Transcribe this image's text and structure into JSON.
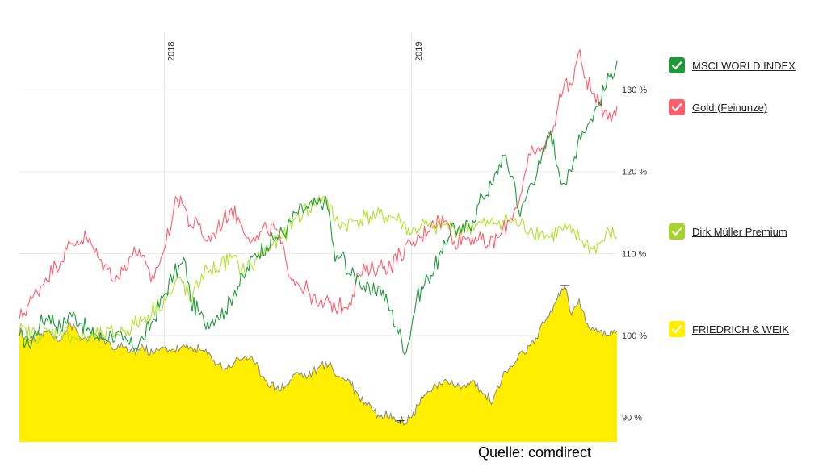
{
  "chart_data": {
    "type": "line",
    "y_unit": "%",
    "y_ticks": [
      90,
      100,
      110,
      120,
      130
    ],
    "ylim": [
      87,
      137
    ],
    "x_range": [
      "2017-06-01",
      "2019-10-31"
    ],
    "x_year_ticks": [
      {
        "label": "2018",
        "date": "2018-01-01"
      },
      {
        "label": "2019",
        "date": "2019-01-01"
      }
    ],
    "grid": true,
    "legend_position": "right",
    "series": [
      {
        "name": "MSCI WORLD INDEX",
        "color": "#1f9a3a",
        "style": "line",
        "points": [
          [
            "2017-06-01",
            100.0
          ],
          [
            "2017-06-15",
            98.8
          ],
          [
            "2017-07-01",
            101.4
          ],
          [
            "2017-07-15",
            102.5
          ],
          [
            "2017-08-01",
            100.8
          ],
          [
            "2017-08-15",
            102.8
          ],
          [
            "2017-09-01",
            101.5
          ],
          [
            "2017-09-15",
            100.2
          ],
          [
            "2017-10-01",
            99.6
          ],
          [
            "2017-10-15",
            100.2
          ],
          [
            "2017-11-01",
            99.4
          ],
          [
            "2017-11-15",
            98.6
          ],
          [
            "2017-12-01",
            99.6
          ],
          [
            "2017-12-15",
            101.8
          ],
          [
            "2018-01-01",
            105.0
          ],
          [
            "2018-01-15",
            107.5
          ],
          [
            "2018-02-01",
            109.0
          ],
          [
            "2018-02-09",
            104.0
          ],
          [
            "2018-02-20",
            103.0
          ],
          [
            "2018-03-01",
            101.5
          ],
          [
            "2018-03-20",
            102.5
          ],
          [
            "2018-04-01",
            103.0
          ],
          [
            "2018-04-15",
            105.5
          ],
          [
            "2018-05-01",
            107.5
          ],
          [
            "2018-05-15",
            110.0
          ],
          [
            "2018-06-01",
            111.0
          ],
          [
            "2018-06-15",
            112.0
          ],
          [
            "2018-07-01",
            113.0
          ],
          [
            "2018-07-15",
            115.0
          ],
          [
            "2018-08-01",
            115.5
          ],
          [
            "2018-08-15",
            116.0
          ],
          [
            "2018-08-25",
            116.5
          ],
          [
            "2018-09-01",
            115.0
          ],
          [
            "2018-09-10",
            109.0
          ],
          [
            "2018-09-20",
            110.0
          ],
          [
            "2018-10-01",
            107.5
          ],
          [
            "2018-10-15",
            107.0
          ],
          [
            "2018-11-01",
            105.0
          ],
          [
            "2018-11-15",
            106.0
          ],
          [
            "2018-12-01",
            103.0
          ],
          [
            "2018-12-10",
            101.0
          ],
          [
            "2018-12-24",
            98.0
          ],
          [
            "2019-01-08",
            104.5
          ],
          [
            "2019-01-25",
            107.0
          ],
          [
            "2019-02-15",
            110.0
          ],
          [
            "2019-03-01",
            113.5
          ],
          [
            "2019-03-15",
            112.5
          ],
          [
            "2019-04-01",
            114.0
          ],
          [
            "2019-04-15",
            117.0
          ],
          [
            "2019-05-01",
            118.5
          ],
          [
            "2019-05-15",
            122.0
          ],
          [
            "2019-06-01",
            119.0
          ],
          [
            "2019-06-10",
            114.5
          ],
          [
            "2019-06-25",
            118.5
          ],
          [
            "2019-07-10",
            121.0
          ],
          [
            "2019-07-25",
            125.0
          ],
          [
            "2019-08-05",
            120.5
          ],
          [
            "2019-08-15",
            118.5
          ],
          [
            "2019-08-25",
            120.0
          ],
          [
            "2019-09-05",
            124.5
          ],
          [
            "2019-09-20",
            126.0
          ],
          [
            "2019-10-05",
            128.5
          ],
          [
            "2019-10-20",
            131.5
          ],
          [
            "2019-10-31",
            133.5
          ]
        ]
      },
      {
        "name": "Gold (Feinunze)",
        "color": "#ff5f6d",
        "style": "line",
        "points": [
          [
            "2017-06-01",
            102.0
          ],
          [
            "2017-06-20",
            104.5
          ],
          [
            "2017-07-10",
            107.0
          ],
          [
            "2017-07-25",
            108.5
          ],
          [
            "2017-08-10",
            110.5
          ],
          [
            "2017-08-25",
            111.5
          ],
          [
            "2017-09-08",
            112.0
          ],
          [
            "2017-09-25",
            109.5
          ],
          [
            "2017-10-10",
            108.0
          ],
          [
            "2017-10-25",
            107.0
          ],
          [
            "2017-11-10",
            109.5
          ],
          [
            "2017-11-25",
            110.5
          ],
          [
            "2017-12-12",
            106.5
          ],
          [
            "2018-01-01",
            110.5
          ],
          [
            "2018-01-15",
            115.5
          ],
          [
            "2018-01-25",
            117.0
          ],
          [
            "2018-02-08",
            113.5
          ],
          [
            "2018-02-20",
            113.5
          ],
          [
            "2018-03-05",
            111.5
          ],
          [
            "2018-03-20",
            113.0
          ],
          [
            "2018-04-10",
            115.5
          ],
          [
            "2018-04-25",
            113.5
          ],
          [
            "2018-05-15",
            111.5
          ],
          [
            "2018-06-01",
            113.0
          ],
          [
            "2018-06-15",
            113.0
          ],
          [
            "2018-07-01",
            108.5
          ],
          [
            "2018-07-15",
            106.5
          ],
          [
            "2018-08-01",
            105.5
          ],
          [
            "2018-08-16",
            103.5
          ],
          [
            "2018-09-01",
            104.0
          ],
          [
            "2018-09-15",
            103.5
          ],
          [
            "2018-10-01",
            104.0
          ],
          [
            "2018-10-15",
            107.5
          ],
          [
            "2018-11-01",
            108.0
          ],
          [
            "2018-11-15",
            108.5
          ],
          [
            "2018-12-01",
            108.5
          ],
          [
            "2018-12-15",
            110.0
          ],
          [
            "2019-01-01",
            111.0
          ],
          [
            "2019-01-15",
            112.0
          ],
          [
            "2019-02-01",
            114.0
          ],
          [
            "2019-02-20",
            114.0
          ],
          [
            "2019-03-05",
            111.5
          ],
          [
            "2019-03-20",
            112.0
          ],
          [
            "2019-04-05",
            112.0
          ],
          [
            "2019-04-23",
            111.0
          ],
          [
            "2019-05-10",
            112.0
          ],
          [
            "2019-05-25",
            114.0
          ],
          [
            "2019-06-10",
            117.0
          ],
          [
            "2019-06-25",
            122.0
          ],
          [
            "2019-07-10",
            122.5
          ],
          [
            "2019-07-25",
            124.5
          ],
          [
            "2019-08-05",
            128.0
          ],
          [
            "2019-08-15",
            131.0
          ],
          [
            "2019-08-25",
            130.5
          ],
          [
            "2019-09-04",
            134.5
          ],
          [
            "2019-09-15",
            131.5
          ],
          [
            "2019-09-25",
            129.5
          ],
          [
            "2019-10-05",
            128.0
          ],
          [
            "2019-10-15",
            127.5
          ],
          [
            "2019-10-25",
            127.0
          ],
          [
            "2019-10-31",
            128.0
          ]
        ]
      },
      {
        "name": "Dirk Müller Premium",
        "color": "#b2e22e",
        "style": "line",
        "points": [
          [
            "2017-06-01",
            100.5
          ],
          [
            "2017-07-01",
            100.0
          ],
          [
            "2017-08-01",
            100.5
          ],
          [
            "2017-09-01",
            99.5
          ],
          [
            "2017-10-01",
            100.0
          ],
          [
            "2017-11-01",
            100.5
          ],
          [
            "2017-12-01",
            102.0
          ],
          [
            "2017-12-20",
            103.5
          ],
          [
            "2018-01-10",
            105.0
          ],
          [
            "2018-01-25",
            107.0
          ],
          [
            "2018-02-10",
            104.0
          ],
          [
            "2018-02-25",
            107.5
          ],
          [
            "2018-03-10",
            108.0
          ],
          [
            "2018-03-25",
            108.5
          ],
          [
            "2018-04-10",
            109.5
          ],
          [
            "2018-04-25",
            108.0
          ],
          [
            "2018-05-10",
            108.5
          ],
          [
            "2018-05-25",
            110.0
          ],
          [
            "2018-06-10",
            111.0
          ],
          [
            "2018-06-25",
            112.0
          ],
          [
            "2018-07-10",
            114.0
          ],
          [
            "2018-07-25",
            115.0
          ],
          [
            "2018-08-10",
            116.0
          ],
          [
            "2018-08-25",
            117.0
          ],
          [
            "2018-09-10",
            114.0
          ],
          [
            "2018-09-25",
            113.5
          ],
          [
            "2018-10-10",
            114.0
          ],
          [
            "2018-10-25",
            114.5
          ],
          [
            "2018-11-10",
            114.5
          ],
          [
            "2018-12-01",
            114.5
          ],
          [
            "2018-12-15",
            114.0
          ],
          [
            "2019-01-01",
            112.5
          ],
          [
            "2019-01-15",
            113.5
          ],
          [
            "2019-02-01",
            113.0
          ],
          [
            "2019-02-20",
            113.5
          ],
          [
            "2019-03-05",
            113.0
          ],
          [
            "2019-03-20",
            113.0
          ],
          [
            "2019-04-05",
            113.5
          ],
          [
            "2019-04-25",
            113.5
          ],
          [
            "2019-05-10",
            114.0
          ],
          [
            "2019-05-25",
            114.0
          ],
          [
            "2019-06-10",
            113.5
          ],
          [
            "2019-06-25",
            113.0
          ],
          [
            "2019-07-10",
            112.5
          ],
          [
            "2019-07-25",
            112.0
          ],
          [
            "2019-08-10",
            113.0
          ],
          [
            "2019-08-25",
            112.5
          ],
          [
            "2019-09-10",
            111.5
          ],
          [
            "2019-09-25",
            110.5
          ],
          [
            "2019-10-10",
            111.5
          ],
          [
            "2019-10-20",
            112.5
          ],
          [
            "2019-10-31",
            112.0
          ]
        ]
      },
      {
        "name": "FRIEDRICH & WEIK",
        "color": "#ffee00",
        "line_color": "#888888",
        "style": "area",
        "points": [
          [
            "2017-06-01",
            100.5
          ],
          [
            "2017-06-15",
            99.5
          ],
          [
            "2017-07-01",
            100.0
          ],
          [
            "2017-07-15",
            100.5
          ],
          [
            "2017-08-01",
            99.5
          ],
          [
            "2017-08-15",
            101.5
          ],
          [
            "2017-09-01",
            99.5
          ],
          [
            "2017-09-15",
            100.0
          ],
          [
            "2017-10-01",
            99.5
          ],
          [
            "2017-10-15",
            98.5
          ],
          [
            "2017-11-01",
            98.5
          ],
          [
            "2017-11-15",
            98.0
          ],
          [
            "2017-12-01",
            98.5
          ],
          [
            "2017-12-15",
            97.8
          ],
          [
            "2018-01-01",
            98.5
          ],
          [
            "2018-01-15",
            98.3
          ],
          [
            "2018-02-01",
            98.5
          ],
          [
            "2018-02-15",
            98.5
          ],
          [
            "2018-03-01",
            98.0
          ],
          [
            "2018-03-15",
            97.0
          ],
          [
            "2018-04-01",
            96.0
          ],
          [
            "2018-04-15",
            96.8
          ],
          [
            "2018-05-01",
            97.5
          ],
          [
            "2018-05-15",
            96.5
          ],
          [
            "2018-06-01",
            94.5
          ],
          [
            "2018-06-15",
            93.5
          ],
          [
            "2018-07-01",
            94.0
          ],
          [
            "2018-07-15",
            95.5
          ],
          [
            "2018-08-01",
            95.0
          ],
          [
            "2018-08-15",
            96.0
          ],
          [
            "2018-09-01",
            96.5
          ],
          [
            "2018-09-15",
            95.0
          ],
          [
            "2018-10-01",
            94.5
          ],
          [
            "2018-10-15",
            92.5
          ],
          [
            "2018-11-01",
            91.5
          ],
          [
            "2018-11-15",
            90.0
          ],
          [
            "2018-12-01",
            90.5
          ],
          [
            "2018-12-15",
            89.5
          ],
          [
            "2019-01-01",
            90.0
          ],
          [
            "2019-01-15",
            92.5
          ],
          [
            "2019-02-01",
            93.5
          ],
          [
            "2019-02-15",
            94.0
          ],
          [
            "2019-03-01",
            94.5
          ],
          [
            "2019-03-15",
            93.5
          ],
          [
            "2019-04-01",
            94.5
          ],
          [
            "2019-04-15",
            93.0
          ],
          [
            "2019-05-01",
            92.0
          ],
          [
            "2019-05-15",
            95.0
          ],
          [
            "2019-06-01",
            96.5
          ],
          [
            "2019-06-15",
            98.0
          ],
          [
            "2019-07-01",
            99.0
          ],
          [
            "2019-07-15",
            101.5
          ],
          [
            "2019-08-01",
            104.0
          ],
          [
            "2019-08-15",
            106.0
          ],
          [
            "2019-08-25",
            102.5
          ],
          [
            "2019-09-05",
            104.5
          ],
          [
            "2019-09-15",
            101.5
          ],
          [
            "2019-09-25",
            101.0
          ],
          [
            "2019-10-05",
            100.5
          ],
          [
            "2019-10-20",
            100.0
          ],
          [
            "2019-10-31",
            100.5
          ]
        ]
      }
    ]
  },
  "legend": [
    {
      "label": "MSCI WORLD INDEX",
      "color": "#1f9a3a",
      "checked": true
    },
    {
      "label": "Gold (Feinunze)",
      "color": "#ff5f6d",
      "checked": true
    },
    {
      "label": "Dirk Müller Premium",
      "color": "#a6d42a",
      "checked": true
    },
    {
      "label": "FRIEDRICH & WEIK",
      "color": "#ffee00",
      "checked": true
    }
  ],
  "source_text": "Quelle: comdirect"
}
